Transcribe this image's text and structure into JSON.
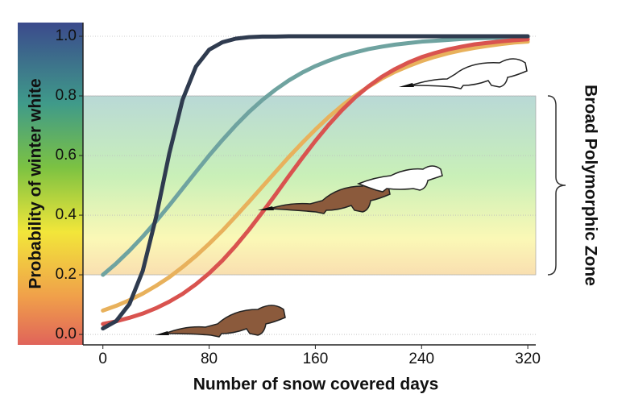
{
  "chart_data": {
    "type": "line",
    "y_label": "Probability of winter white",
    "x_label": "Number of snow covered days",
    "annotation": "Broad Polymorphic Zone",
    "band": [
      0.2,
      0.8
    ],
    "xlim": [
      -15,
      326
    ],
    "ylim": [
      -0.035,
      1.046
    ],
    "xticks": [
      0,
      80,
      160,
      240,
      320
    ],
    "yticks": [
      {
        "value": 0,
        "label": "0.0"
      },
      0.2,
      0.4,
      0.6,
      0.8,
      {
        "value": 1,
        "label": "1.0"
      }
    ],
    "grid": true,
    "x": [
      0,
      10,
      20,
      30,
      40,
      50,
      60,
      70,
      80,
      90,
      100,
      110,
      120,
      130,
      140,
      150,
      160,
      170,
      180,
      190,
      200,
      210,
      220,
      230,
      240,
      250,
      260,
      270,
      280,
      290,
      300,
      310,
      320
    ],
    "series": [
      {
        "color": "#6fa3a0",
        "values": [
          0.2,
          0.238,
          0.281,
          0.328,
          0.379,
          0.433,
          0.489,
          0.545,
          0.6,
          0.652,
          0.701,
          0.746,
          0.786,
          0.821,
          0.852,
          0.878,
          0.9,
          0.918,
          0.934,
          0.946,
          0.957,
          0.965,
          0.972,
          0.977,
          0.982,
          0.985,
          0.988,
          0.991,
          0.993,
          0.994,
          0.995,
          0.996,
          0.997
        ]
      },
      {
        "color": "#e8b15c",
        "values": [
          0.08,
          0.096,
          0.115,
          0.137,
          0.163,
          0.192,
          0.226,
          0.263,
          0.304,
          0.348,
          0.396,
          0.445,
          0.495,
          0.545,
          0.595,
          0.642,
          0.687,
          0.729,
          0.767,
          0.801,
          0.831,
          0.858,
          0.881,
          0.9,
          0.917,
          0.931,
          0.943,
          0.953,
          0.961,
          0.968,
          0.974,
          0.979,
          0.982
        ]
      },
      {
        "color": "#d9534f",
        "values": [
          0.035,
          0.044,
          0.056,
          0.07,
          0.088,
          0.11,
          0.136,
          0.168,
          0.205,
          0.248,
          0.297,
          0.351,
          0.409,
          0.469,
          0.531,
          0.591,
          0.649,
          0.703,
          0.752,
          0.795,
          0.832,
          0.864,
          0.89,
          0.912,
          0.93,
          0.944,
          0.956,
          0.965,
          0.973,
          0.978,
          0.983,
          0.987,
          0.99
        ]
      },
      {
        "color": "#2f3b4f",
        "values": [
          0.02,
          0.045,
          0.102,
          0.213,
          0.393,
          0.607,
          0.787,
          0.898,
          0.955,
          0.98,
          0.992,
          0.997,
          0.999,
          0.999,
          1,
          1,
          1,
          1,
          1,
          1,
          1,
          1,
          1,
          1,
          1,
          1,
          1,
          1,
          1,
          1,
          1,
          1,
          1
        ]
      }
    ]
  }
}
